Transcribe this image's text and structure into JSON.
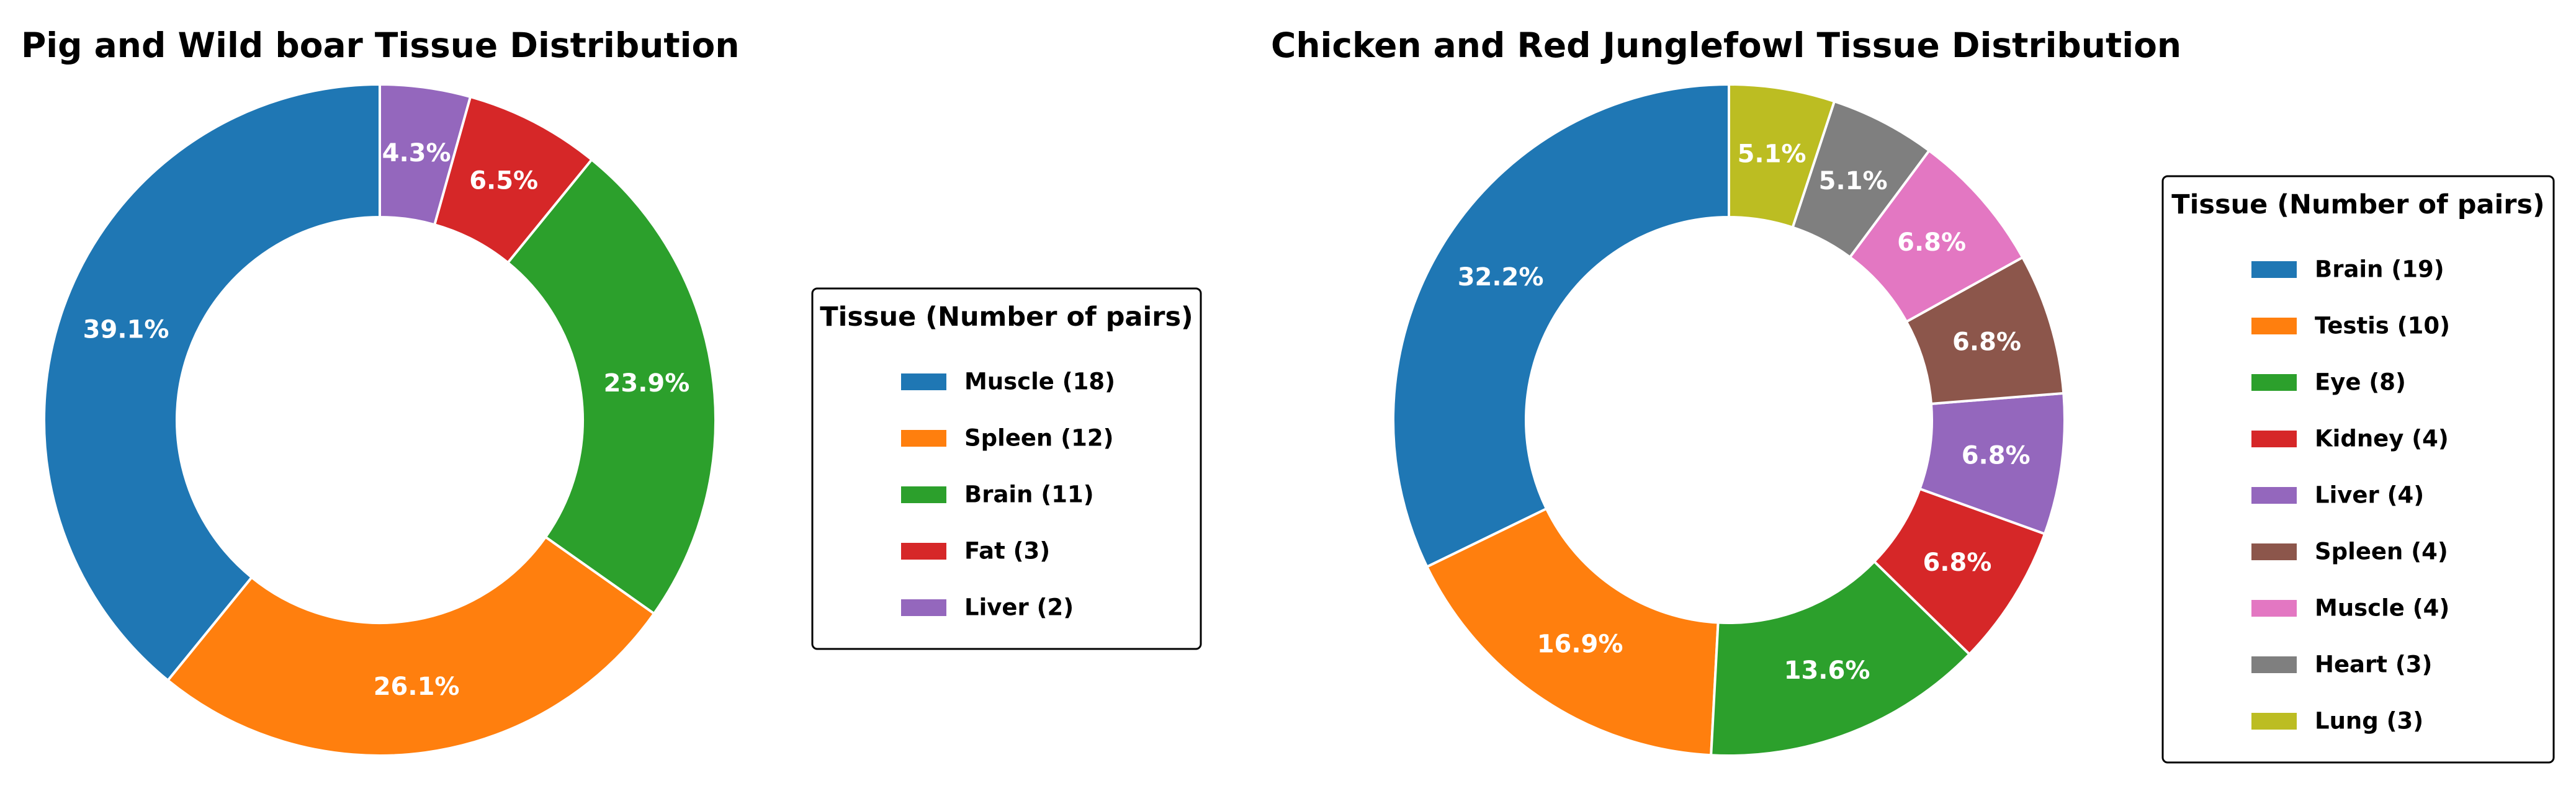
{
  "chart_data": [
    {
      "type": "pie",
      "title": "Pig and Wild boar Tissue Distribution",
      "legend_title": "Tissue (Number of pairs)",
      "legend_position": "right",
      "donut": true,
      "slices": [
        {
          "label": "Muscle",
          "count": 18,
          "legend_label": "Muscle (18)",
          "pct_label": "39.1%",
          "color": "#1f77b4"
        },
        {
          "label": "Spleen",
          "count": 12,
          "legend_label": "Spleen (12)",
          "pct_label": "26.1%",
          "color": "#ff7f0e"
        },
        {
          "label": "Brain",
          "count": 11,
          "legend_label": "Brain (11)",
          "pct_label": "23.9%",
          "color": "#2ca02c"
        },
        {
          "label": "Fat",
          "count": 3,
          "legend_label": "Fat (3)",
          "pct_label": "6.5%",
          "color": "#d62728"
        },
        {
          "label": "Liver",
          "count": 2,
          "legend_label": "Liver (2)",
          "pct_label": "4.3%",
          "color": "#9467bd"
        }
      ]
    },
    {
      "type": "pie",
      "title": "Chicken and Red Junglefowl Tissue Distribution",
      "legend_title": "Tissue (Number of pairs)",
      "legend_position": "right",
      "donut": true,
      "slices": [
        {
          "label": "Brain",
          "count": 19,
          "legend_label": "Brain (19)",
          "pct_label": "32.2%",
          "color": "#1f77b4"
        },
        {
          "label": "Testis",
          "count": 10,
          "legend_label": "Testis (10)",
          "pct_label": "16.9%",
          "color": "#ff7f0e"
        },
        {
          "label": "Eye",
          "count": 8,
          "legend_label": "Eye (8)",
          "pct_label": "13.6%",
          "color": "#2ca02c"
        },
        {
          "label": "Kidney",
          "count": 4,
          "legend_label": "Kidney (4)",
          "pct_label": "6.8%",
          "color": "#d62728"
        },
        {
          "label": "Liver",
          "count": 4,
          "legend_label": "Liver (4)",
          "pct_label": "6.8%",
          "color": "#9467bd"
        },
        {
          "label": "Spleen",
          "count": 4,
          "legend_label": "Spleen (4)",
          "pct_label": "6.8%",
          "color": "#8c564b"
        },
        {
          "label": "Muscle",
          "count": 4,
          "legend_label": "Muscle (4)",
          "pct_label": "6.8%",
          "color": "#e377c2"
        },
        {
          "label": "Heart",
          "count": 3,
          "legend_label": "Heart (3)",
          "pct_label": "5.1%",
          "color": "#7f7f7f"
        },
        {
          "label": "Lung",
          "count": 3,
          "legend_label": "Lung (3)",
          "pct_label": "5.1%",
          "color": "#bcbd22"
        }
      ]
    }
  ]
}
